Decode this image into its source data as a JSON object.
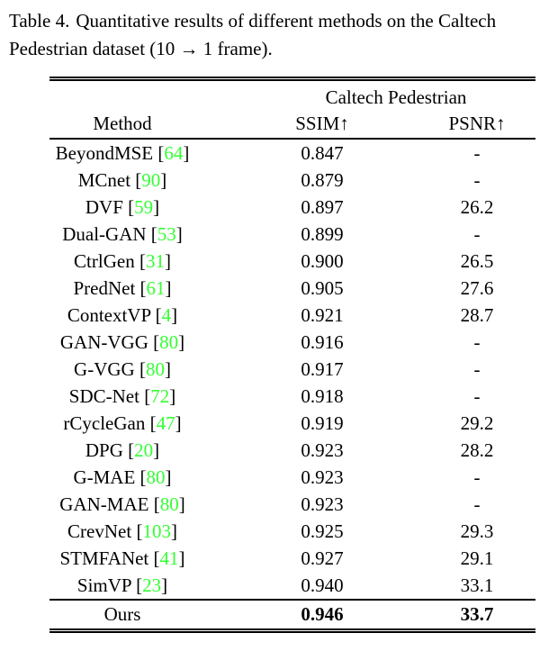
{
  "caption": {
    "label": "Table 4.",
    "line1": "Quantitative results of different methods on the Caltech",
    "line2": "Pedestrian dataset (10 → 1 frame)."
  },
  "table": {
    "group_header": "Caltech Pedestrian",
    "columns": {
      "method": "Method",
      "ssim": "SSIM↑",
      "psnr": "PSNR↑"
    },
    "bracket_open": "[",
    "bracket_close": "]",
    "rows": [
      {
        "method": "BeyondMSE",
        "cite": "64",
        "ssim": "0.847",
        "psnr": "-"
      },
      {
        "method": "MCnet",
        "cite": "90",
        "ssim": "0.879",
        "psnr": "-"
      },
      {
        "method": "DVF",
        "cite": "59",
        "ssim": "0.897",
        "psnr": "26.2"
      },
      {
        "method": "Dual-GAN",
        "cite": "53",
        "ssim": "0.899",
        "psnr": "-"
      },
      {
        "method": "CtrlGen",
        "cite": "31",
        "ssim": "0.900",
        "psnr": "26.5"
      },
      {
        "method": "PredNet",
        "cite": "61",
        "ssim": "0.905",
        "psnr": "27.6"
      },
      {
        "method": "ContextVP",
        "cite": "4",
        "ssim": "0.921",
        "psnr": "28.7"
      },
      {
        "method": "GAN-VGG",
        "cite": "80",
        "ssim": "0.916",
        "psnr": "-"
      },
      {
        "method": "G-VGG",
        "cite": "80",
        "ssim": "0.917",
        "psnr": "-"
      },
      {
        "method": "SDC-Net",
        "cite": "72",
        "ssim": "0.918",
        "psnr": "-"
      },
      {
        "method": "rCycleGan",
        "cite": "47",
        "ssim": "0.919",
        "psnr": "29.2"
      },
      {
        "method": "DPG",
        "cite": "20",
        "ssim": "0.923",
        "psnr": "28.2"
      },
      {
        "method": "G-MAE",
        "cite": "80",
        "ssim": "0.923",
        "psnr": "-"
      },
      {
        "method": "GAN-MAE",
        "cite": "80",
        "ssim": "0.923",
        "psnr": "-"
      },
      {
        "method": "CrevNet",
        "cite": "103",
        "ssim": "0.925",
        "psnr": "29.3"
      },
      {
        "method": "STMFANet",
        "cite": "41",
        "ssim": "0.927",
        "psnr": "29.1"
      },
      {
        "method": "SimVP",
        "cite": "23",
        "ssim": "0.940",
        "psnr": "33.1"
      }
    ],
    "ours_row": {
      "method": "Ours",
      "ssim": "0.946",
      "psnr": "33.7"
    }
  },
  "colors": {
    "citation_green": "#33ff33",
    "text": "#000000",
    "rule": "#000000"
  }
}
